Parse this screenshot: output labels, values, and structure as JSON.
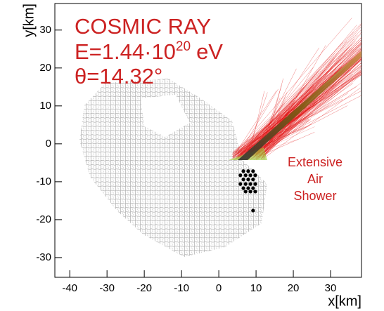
{
  "chart_data": {
    "type": "scatter",
    "title_lines": {
      "line1": "COSMIC RAY",
      "energy": {
        "base": "E=1.44·10",
        "exponent": "20",
        "unit": "eV"
      },
      "angle": "θ=14.32°"
    },
    "annotation": [
      "Extensive",
      "Air",
      "Shower"
    ],
    "x_label": "x[km]",
    "y_label": "y[km]",
    "xlim": [
      -44,
      38.3
    ],
    "ylim": [
      -35.2,
      37
    ],
    "xticks": [
      -40,
      -30,
      -20,
      -10,
      0,
      10,
      20,
      30
    ],
    "yticks": [
      -30,
      -20,
      -10,
      0,
      10,
      20,
      30
    ],
    "color": "#000000",
    "x": [
      6.6,
      7.9,
      9.2,
      5.8,
      7.2,
      8.5,
      9.8,
      6.6,
      7.9,
      9.2,
      5.8,
      7.2,
      8.5,
      9.8,
      6.6,
      7.9,
      9.2,
      7.2,
      8.5,
      9.8,
      9.2
    ],
    "y": [
      -7.2,
      -7.2,
      -7.2,
      -8.3,
      -8.3,
      -8.3,
      -8.3,
      -9.4,
      -9.4,
      -9.4,
      -10.6,
      -10.6,
      -10.6,
      -10.6,
      -11.7,
      -11.7,
      -11.7,
      -12.6,
      -12.6,
      -12.6,
      -17.6
    ]
  }
}
